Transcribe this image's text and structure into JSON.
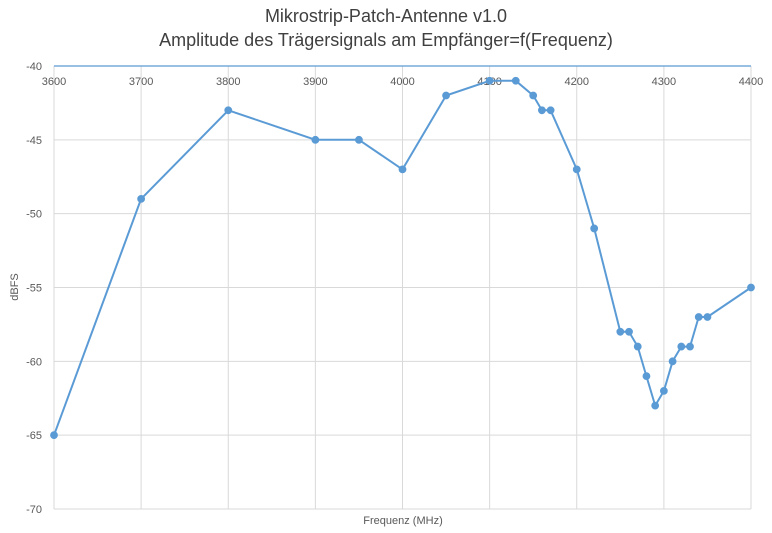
{
  "chart_data": {
    "type": "line",
    "title": "Mikrostrip-Patch-Antenne v1.0",
    "subtitle": "Amplitude des Trägersignals am Empfänger=f(Frequenz)",
    "xlabel": "Frequenz (MHz)",
    "ylabel": "dBFS",
    "xlim": [
      3600,
      4400
    ],
    "ylim": [
      -70,
      -40
    ],
    "x_ticks": [
      "3600",
      "3700",
      "3800",
      "3900",
      "4000",
      "4100",
      "4200",
      "4300",
      "4400"
    ],
    "y_ticks": [
      "-40",
      "-45",
      "-50",
      "-55",
      "-60",
      "-65",
      "-70"
    ],
    "grid": true,
    "series": [
      {
        "color": "#5b9bd5",
        "x": [
          3600,
          3700,
          3800,
          3900,
          3950,
          4000,
          4050,
          4100,
          4130,
          4150,
          4160,
          4170,
          4200,
          4220,
          4250,
          4260,
          4270,
          4280,
          4290,
          4300,
          4310,
          4320,
          4330,
          4340,
          4350,
          4400
        ],
        "y": [
          -65,
          -49,
          -43,
          -45,
          -45,
          -47,
          -42,
          -41,
          -41,
          -42,
          -43,
          -43,
          -47,
          -51,
          -58,
          -58,
          -59,
          -61,
          -63,
          -62,
          -60,
          -59,
          -59,
          -57,
          -57,
          -55
        ]
      }
    ]
  }
}
